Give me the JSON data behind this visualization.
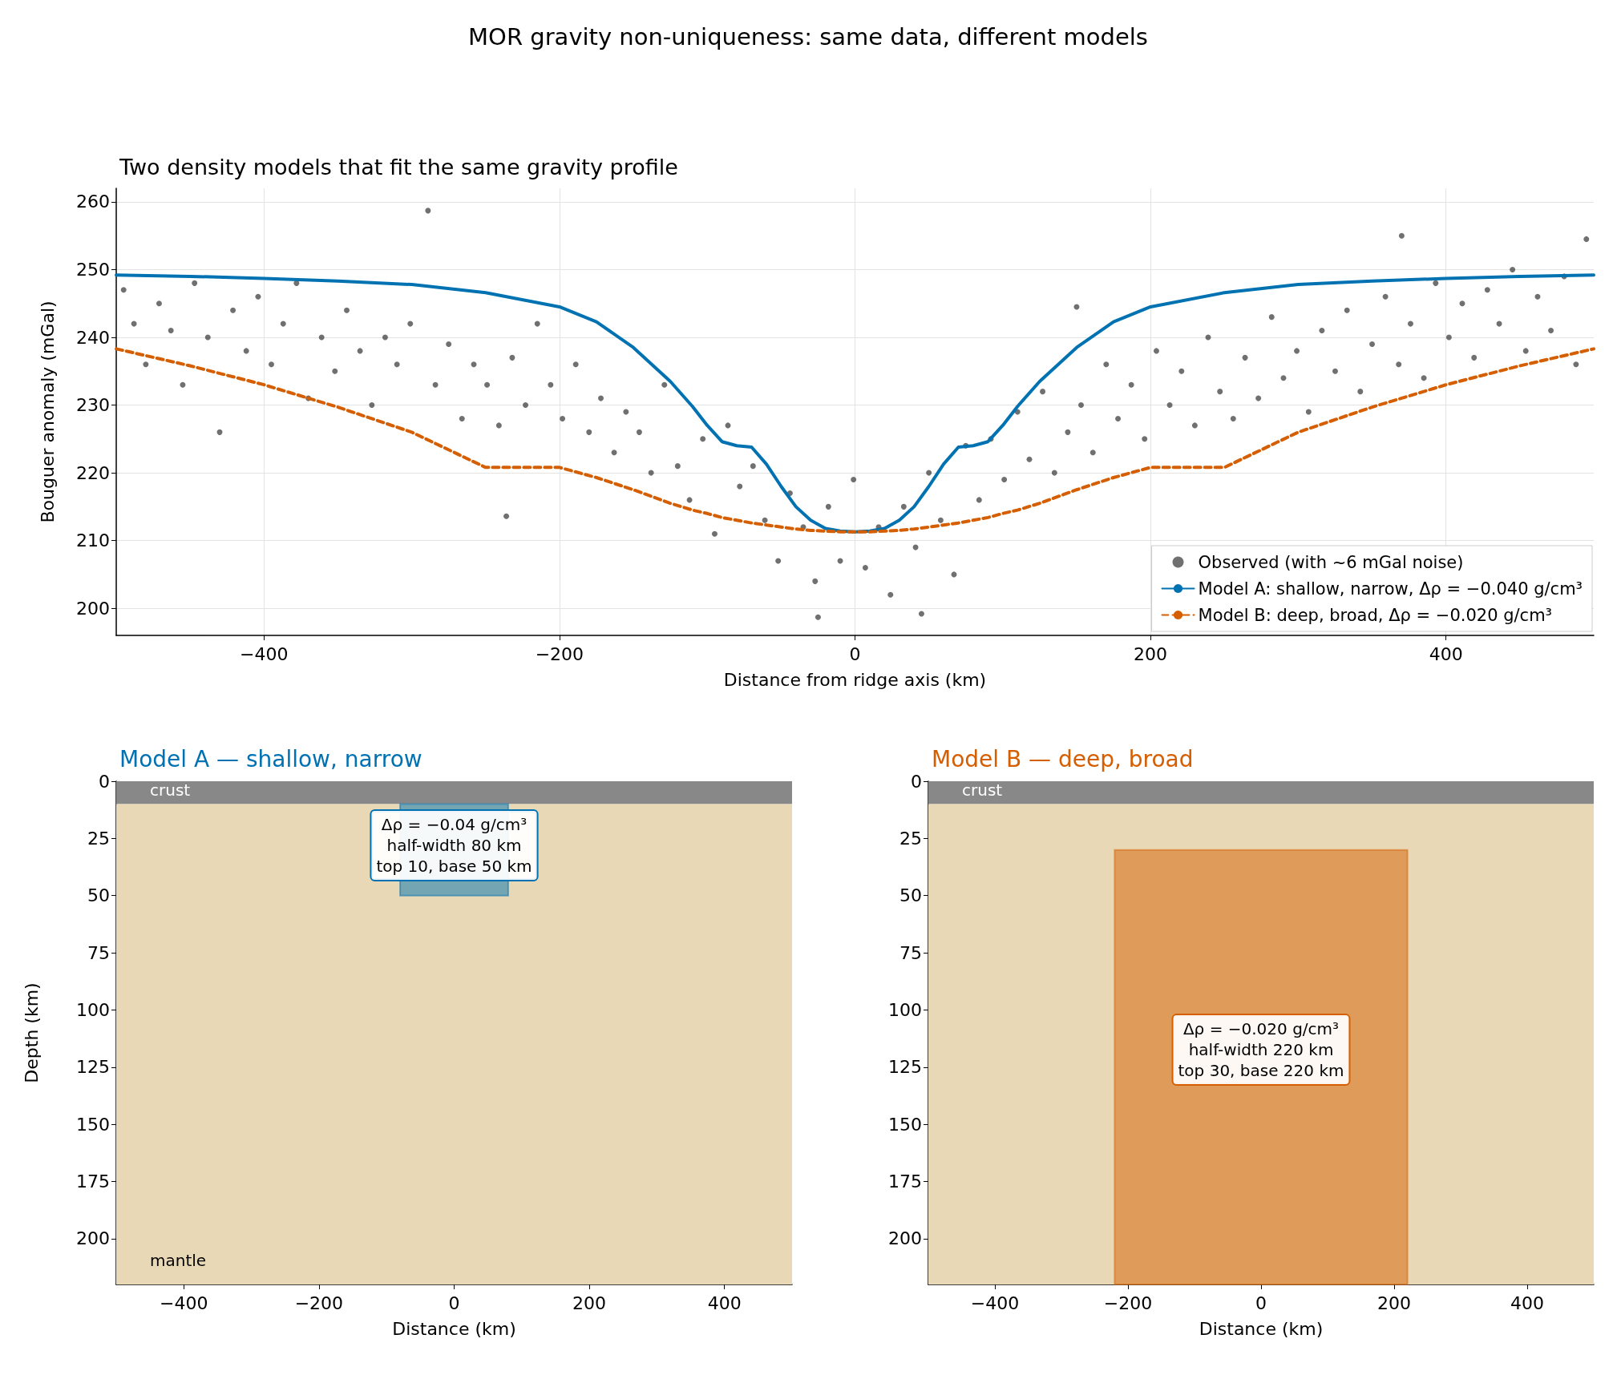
{
  "chart_data": [
    {
      "type": "line",
      "title": "MOR gravity non-uniqueness: same data, different models",
      "subtitle": "Two density models that fit the same gravity profile",
      "xlabel": "Distance from ridge axis (km)",
      "ylabel": "Bouguer anomaly (mGal)",
      "xlim": [
        -500,
        500
      ],
      "xticks": [
        -400,
        -200,
        0,
        200,
        400
      ],
      "ylim": [
        196,
        262
      ],
      "yticks": [
        200,
        210,
        220,
        230,
        240,
        250,
        260
      ],
      "grid": true,
      "legend": "bottom right",
      "series": [
        {
          "name": "Observed (with ~6 mGal noise)",
          "type": "scatter",
          "marker": "circle",
          "color": "#333333",
          "x": [
            -495,
            -488,
            -480,
            -471,
            -463,
            -455,
            -447,
            -438,
            -430,
            -421,
            -412,
            -404,
            -395,
            -387,
            -378,
            -370,
            -361,
            -352,
            -344,
            -335,
            -327,
            -318,
            -310,
            -301,
            -289,
            -284,
            -275,
            -266,
            -258,
            -249,
            -241,
            -236,
            -232,
            -223,
            -215,
            -206,
            -198,
            -189,
            -180,
            -172,
            -163,
            -155,
            -146,
            -138,
            -129,
            -120,
            -112,
            -103,
            -95,
            -86,
            -78,
            -69,
            -61,
            -52,
            -44,
            -35,
            -27,
            -25,
            -18,
            -10,
            -1,
            7,
            16,
            24,
            33,
            41,
            45,
            50,
            58,
            67,
            75,
            84,
            92,
            101,
            110,
            118,
            127,
            135,
            144,
            150,
            153,
            161,
            170,
            178,
            187,
            196,
            204,
            213,
            221,
            230,
            239,
            247,
            256,
            264,
            273,
            282,
            290,
            299,
            307,
            316,
            325,
            333,
            342,
            350,
            359,
            368,
            370,
            376,
            385,
            393,
            402,
            411,
            419,
            428,
            436,
            445,
            454,
            462,
            471,
            480,
            488,
            495
          ],
          "values": [
            247,
            242,
            236,
            245,
            241,
            233,
            248,
            240,
            226,
            244,
            238,
            246,
            236,
            242,
            248,
            231,
            240,
            235,
            244,
            238,
            230,
            240,
            236,
            242,
            258.7,
            233,
            239,
            228,
            236,
            233,
            227,
            213.6,
            237,
            230,
            242,
            233,
            228,
            236,
            226,
            231,
            223,
            229,
            226,
            220,
            233,
            221,
            216,
            225,
            211,
            227,
            218,
            221,
            213,
            207,
            217,
            212,
            204,
            198.7,
            215,
            207,
            219,
            206,
            212,
            202,
            215,
            209,
            199.2,
            220,
            213,
            205,
            224,
            216,
            225,
            219,
            229,
            222,
            232,
            220,
            226,
            244.5,
            230,
            223,
            236,
            228,
            233,
            225,
            238,
            230,
            235,
            227,
            240,
            232,
            228,
            237,
            231,
            243,
            234,
            238,
            229,
            241,
            235,
            244,
            232,
            239,
            246,
            236,
            255,
            242,
            234,
            248,
            240,
            245,
            237,
            247,
            242,
            250,
            238,
            246,
            241,
            249,
            236,
            254.5
          ]
        },
        {
          "name": "Model A: shallow, narrow, Δρ = −0.040 g/cm³",
          "type": "line",
          "line_style": "solid",
          "color": "#0072b2",
          "x": [
            -500,
            -450,
            -400,
            -350,
            -300,
            -250,
            -200,
            -175,
            -150,
            -125,
            -110,
            -100,
            -90,
            -80,
            -70,
            -60,
            -50,
            -40,
            -30,
            -20,
            -10,
            0,
            10,
            20,
            30,
            40,
            50,
            60,
            70,
            80,
            90,
            100,
            110,
            125,
            150,
            175,
            200,
            250,
            300,
            350,
            400,
            450,
            500
          ],
          "values": [
            249.2,
            249.0,
            248.7,
            248.3,
            247.8,
            246.6,
            244.5,
            242.3,
            238.5,
            233.5,
            229.8,
            227.0,
            224.6,
            224.0,
            223.8,
            221.3,
            218.0,
            215.0,
            213.0,
            211.8,
            211.4,
            211.3,
            211.4,
            211.8,
            213.0,
            215.0,
            218.0,
            221.3,
            223.8,
            224.0,
            224.6,
            227.0,
            229.8,
            233.5,
            238.5,
            242.3,
            244.5,
            246.6,
            247.8,
            248.3,
            248.7,
            249.0,
            249.2
          ]
        },
        {
          "name": "Model B: deep, broad, Δρ = −0.020 g/cm³",
          "type": "line",
          "line_style": "dashed",
          "color": "#d55e00",
          "x": [
            -500,
            -450,
            -400,
            -350,
            -300,
            -250,
            -200,
            -175,
            -150,
            -125,
            -110,
            -100,
            -90,
            -80,
            -70,
            -60,
            -50,
            -40,
            -30,
            -20,
            -10,
            0,
            10,
            20,
            30,
            40,
            50,
            60,
            70,
            80,
            90,
            100,
            110,
            125,
            150,
            175,
            200,
            250,
            300,
            350,
            400,
            450,
            500
          ],
          "values": [
            238.3,
            235.8,
            233.0,
            229.7,
            226.0,
            220.8,
            220.8,
            219.3,
            217.5,
            215.5,
            214.5,
            214.0,
            213.4,
            213.0,
            212.6,
            212.3,
            212.0,
            211.7,
            211.5,
            211.4,
            211.3,
            211.3,
            211.3,
            211.4,
            211.5,
            211.7,
            212.0,
            212.3,
            212.6,
            213.0,
            213.4,
            214.0,
            214.5,
            215.5,
            217.5,
            219.3,
            220.8,
            220.8,
            226.0,
            229.7,
            233.0,
            235.8,
            238.3
          ]
        }
      ]
    },
    {
      "type": "bar",
      "title": "Model A — shallow, narrow",
      "xlabel": "Distance (km)",
      "ylabel": "Depth (km)",
      "xlim": [
        -500,
        500
      ],
      "xticks": [
        -400,
        -200,
        0,
        200,
        400
      ],
      "ylim": [
        220,
        0
      ],
      "yticks": [
        0,
        25,
        50,
        75,
        100,
        125,
        150,
        175,
        200
      ],
      "bands": [
        {
          "axis": "y",
          "from": 0,
          "to": 10,
          "label": "crust",
          "color": "#888888"
        },
        {
          "axis": "y",
          "from": 10,
          "to": 220,
          "label": "mantle",
          "color": "#e8d8b5"
        }
      ],
      "series": [
        {
          "type": "line",
          "color": "#0072b2",
          "x": [
            -80,
            80
          ],
          "values": [
            null,
            null
          ],
          "lower": [
            10,
            10
          ],
          "upper": [
            50,
            50
          ]
        }
      ],
      "annotations": [
        "Δρ = −0.04 g/cm³\nhalf-width 80 km\ntop 10, base 50 km"
      ]
    },
    {
      "type": "bar",
      "title": "Model B — deep, broad",
      "xlabel": "Distance (km)",
      "xlim": [
        -500,
        500
      ],
      "xticks": [
        -400,
        -200,
        0,
        200,
        400
      ],
      "ylim": [
        220,
        0
      ],
      "yticks": [
        0,
        25,
        50,
        75,
        100,
        125,
        150,
        175,
        200
      ],
      "bands": [
        {
          "axis": "y",
          "from": 0,
          "to": 10,
          "label": "crust",
          "color": "#888888"
        },
        {
          "axis": "y",
          "from": 10,
          "to": 220,
          "color": "#e8d8b5"
        }
      ],
      "series": [
        {
          "type": "line",
          "color": "#d55e00",
          "x": [
            -220,
            220
          ],
          "values": [
            null,
            null
          ],
          "lower": [
            30,
            30
          ],
          "upper": [
            220,
            220
          ]
        }
      ],
      "annotations": [
        "Δρ = −0.020 g/cm³\nhalf-width 220 km\ntop 30, base 220 km"
      ]
    }
  ]
}
